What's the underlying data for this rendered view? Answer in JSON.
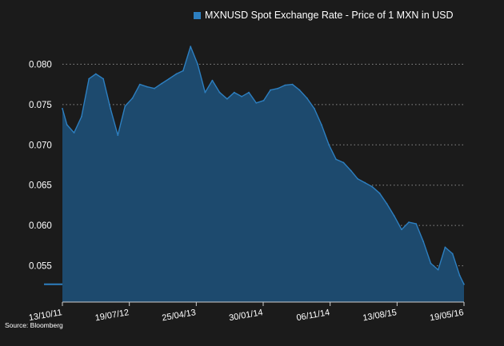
{
  "chart_data": {
    "type": "area",
    "title": "",
    "xlabel": "",
    "ylabel": "",
    "ylim": [
      0.0505,
      0.0845
    ],
    "yticks": [
      0.055,
      0.06,
      0.065,
      0.07,
      0.075,
      0.08
    ],
    "ytick_labels": [
      "0.055",
      "0.060",
      "0.065",
      "0.070",
      "0.075",
      "0.080"
    ],
    "xtick_labels": [
      "13/10/11",
      "19/07/12",
      "25/04/13",
      "30/01/14",
      "06/11/14",
      "13/08/15",
      "19/05/16"
    ],
    "grid": "horizontal dotted",
    "legend_position": "top-right",
    "series": [
      {
        "name": "MXNUSD Spot Exchange Rate - Price of 1 MXN in USD",
        "color": "#2d7fc0",
        "fill": "#1d4a6e",
        "x": [
          "13/10/11",
          "01/11/11",
          "01/12/11",
          "01/01/12",
          "01/02/12",
          "01/03/12",
          "01/04/12",
          "01/05/12",
          "01/06/12",
          "01/07/12",
          "01/08/12",
          "01/09/12",
          "01/10/12",
          "01/11/12",
          "01/12/12",
          "01/01/13",
          "01/02/13",
          "01/03/13",
          "01/04/13",
          "01/05/13",
          "01/06/13",
          "01/07/13",
          "01/08/13",
          "01/09/13",
          "01/10/13",
          "01/11/13",
          "01/12/13",
          "01/01/14",
          "01/02/14",
          "01/03/14",
          "01/04/14",
          "01/05/14",
          "01/06/14",
          "01/07/14",
          "01/08/14",
          "01/09/14",
          "01/10/14",
          "01/11/14",
          "01/12/14",
          "01/01/15",
          "01/02/15",
          "01/03/15",
          "01/04/15",
          "01/05/15",
          "01/06/15",
          "01/07/15",
          "01/08/15",
          "01/09/15",
          "01/10/15",
          "01/11/15",
          "01/12/15",
          "01/01/16",
          "01/02/16",
          "01/03/16",
          "01/04/16",
          "01/05/16",
          "19/05/16"
        ],
        "values": [
          0.0745,
          0.0725,
          0.0715,
          0.0735,
          0.0782,
          0.0788,
          0.0782,
          0.0745,
          0.0712,
          0.0748,
          0.0758,
          0.0775,
          0.0772,
          0.077,
          0.0776,
          0.0782,
          0.0788,
          0.0792,
          0.0822,
          0.08,
          0.0765,
          0.078,
          0.0765,
          0.0757,
          0.0765,
          0.076,
          0.0765,
          0.0752,
          0.0755,
          0.0768,
          0.077,
          0.0774,
          0.0775,
          0.0768,
          0.0758,
          0.0745,
          0.0725,
          0.07,
          0.0682,
          0.0678,
          0.0668,
          0.0658,
          0.0653,
          0.0648,
          0.064,
          0.0627,
          0.0612,
          0.0595,
          0.0604,
          0.0602,
          0.058,
          0.0553,
          0.0545,
          0.0573,
          0.0565,
          0.0538,
          0.0527
        ]
      }
    ]
  },
  "legend": {
    "label": "MXNUSD Spot Exchange Rate - Price of 1 MXN in USD"
  },
  "source": "Source: Bloomberg"
}
